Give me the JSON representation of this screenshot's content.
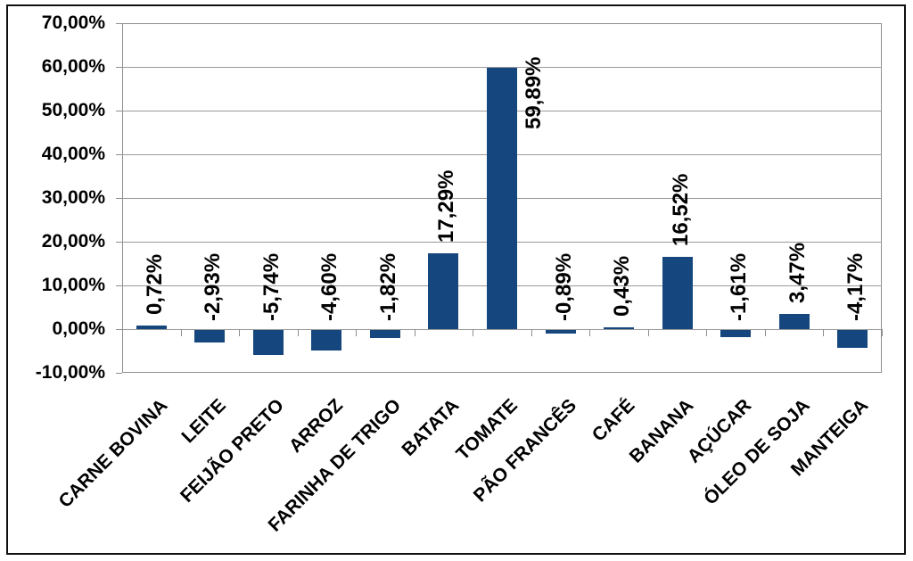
{
  "chart_data": {
    "type": "bar",
    "title": "",
    "xlabel": "",
    "ylabel": "",
    "categories": [
      "CARNE BOVINA",
      "LEITE",
      "FEIJÃO PRETO",
      "ARROZ",
      "FARINHA DE TRIGO",
      "BATATA",
      "TOMATE",
      "PÃO FRANCÊS",
      "CAFÉ",
      "BANANA",
      "AÇÚCAR",
      "ÓLEO DE SOJA",
      "MANTEIGA"
    ],
    "values": [
      0.72,
      -2.93,
      -5.74,
      -4.6,
      -1.82,
      17.29,
      59.89,
      -0.89,
      0.43,
      16.52,
      -1.61,
      3.47,
      -4.17
    ],
    "value_labels": [
      "0,72%",
      "-2,93%",
      "-5,74%",
      "-4,60%",
      "-1,82%",
      "17,29%",
      "59,89%",
      "-0,89%",
      "0,43%",
      "16,52%",
      "-1,61%",
      "3,47%",
      "-4,17%"
    ],
    "y_tick_labels": [
      "70,00%",
      "60,00%",
      "50,00%",
      "40,00%",
      "30,00%",
      "20,00%",
      "10,00%",
      "0,00%",
      "-10,00%"
    ],
    "y_tick_values": [
      70,
      60,
      50,
      40,
      30,
      20,
      10,
      0,
      -10
    ],
    "ylim": [
      -10,
      70
    ],
    "grid": true,
    "legend": "none",
    "bar_color": "#15477E",
    "gridline_color": "#9a9a9a",
    "axis_color": "#8e8e8e",
    "text_color": "#000000",
    "frame_color": "#111111",
    "category_label_rotation_deg": -45,
    "value_label_rotation_deg": -90,
    "decimal_separator": ","
  }
}
